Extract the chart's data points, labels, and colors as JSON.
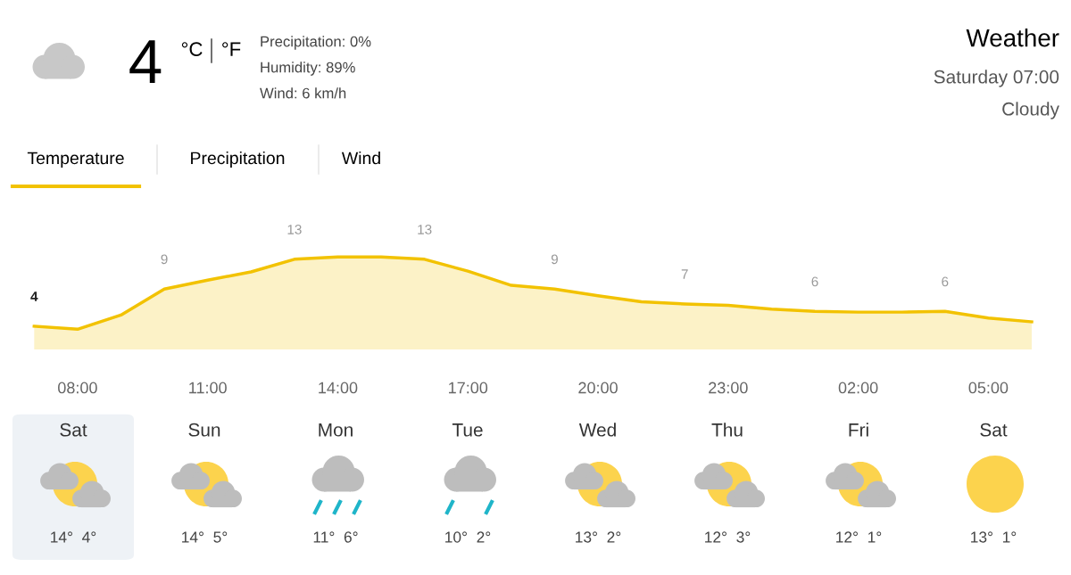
{
  "chart_data": {
    "type": "area",
    "categories": [
      null,
      "08:00",
      null,
      null,
      "11:00",
      null,
      null,
      "14:00",
      null,
      null,
      "17:00",
      null,
      null,
      "20:00",
      null,
      null,
      "23:00",
      null,
      null,
      "02:00",
      null,
      null,
      "05:00",
      null
    ],
    "series": [
      {
        "color": "#f2c200",
        "values": [
          4,
          3.6,
          5.5,
          9,
          10.2,
          11.3,
          13,
          13.3,
          13.3,
          13,
          11.4,
          9.5,
          9,
          8.1,
          7.3,
          7,
          6.8,
          6.3,
          6,
          5.9,
          5.9,
          6,
          5.1,
          4.6
        ],
        "value_labels": [
          "4",
          null,
          null,
          "9",
          null,
          null,
          "13",
          null,
          null,
          "13",
          null,
          null,
          "9",
          null,
          null,
          "7",
          null,
          null,
          "6",
          null,
          null,
          "6",
          null,
          null
        ]
      }
    ],
    "tick_labels": "x",
    "annotations": [
      "4",
      "°C",
      "°F",
      "Precipitation: 0%",
      "Humidity: 89%",
      "Wind: 6 km/h",
      "Weather",
      "Saturday 07:00",
      "Cloudy",
      "Temperature",
      "Precipitation",
      "Wind",
      "Sat",
      "Sun",
      "Mon",
      "Tue",
      "Wed",
      "Thu",
      "Fri",
      "Sat",
      "14°  4°",
      "14°  5°",
      "11°  6°",
      "10°  2°",
      "13°  2°",
      "12°  3°",
      "12°  1°",
      "13°  1°"
    ]
  }
}
